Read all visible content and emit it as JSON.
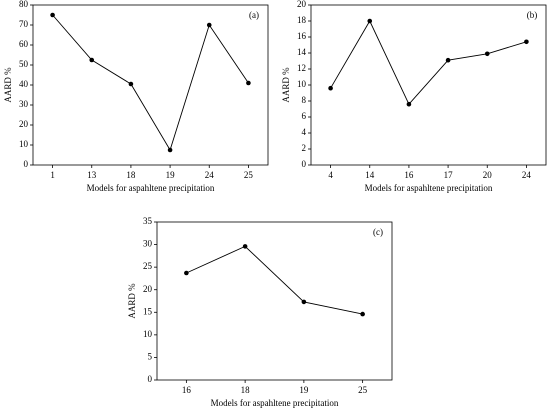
{
  "chart_data": [
    {
      "type": "line",
      "annotation": "(a)",
      "x_label": "Models for aspahltene precipitation",
      "y_label": "AARD %",
      "categories": [
        "1",
        "13",
        "18",
        "19",
        "24",
        "25"
      ],
      "values": [
        75,
        52.5,
        40.5,
        7.5,
        70,
        41
      ],
      "color": "#000000",
      "ylim": [
        0,
        80
      ],
      "yticks": [
        0,
        10,
        20,
        30,
        40,
        50,
        60,
        70,
        80
      ]
    },
    {
      "type": "line",
      "annotation": "(b)",
      "x_label": "Models for aspahltene precipitation",
      "y_label": "AARD %",
      "categories": [
        "4",
        "14",
        "16",
        "17",
        "20",
        "24"
      ],
      "values": [
        9.6,
        18,
        7.6,
        13.1,
        13.9,
        15.4
      ],
      "color": "#000000",
      "ylim": [
        0,
        20
      ],
      "yticks": [
        0,
        2,
        4,
        6,
        8,
        10,
        12,
        14,
        16,
        18,
        20
      ]
    },
    {
      "type": "line",
      "annotation": "(c)",
      "x_label": "Models for aspahltene precipitation",
      "y_label": "AARD %",
      "categories": [
        "16",
        "18",
        "19",
        "25"
      ],
      "values": [
        23.7,
        29.6,
        17.3,
        14.6
      ],
      "color": "#000000",
      "ylim": [
        0,
        35
      ],
      "yticks": [
        0,
        5,
        10,
        15,
        20,
        25,
        30,
        35
      ]
    }
  ]
}
